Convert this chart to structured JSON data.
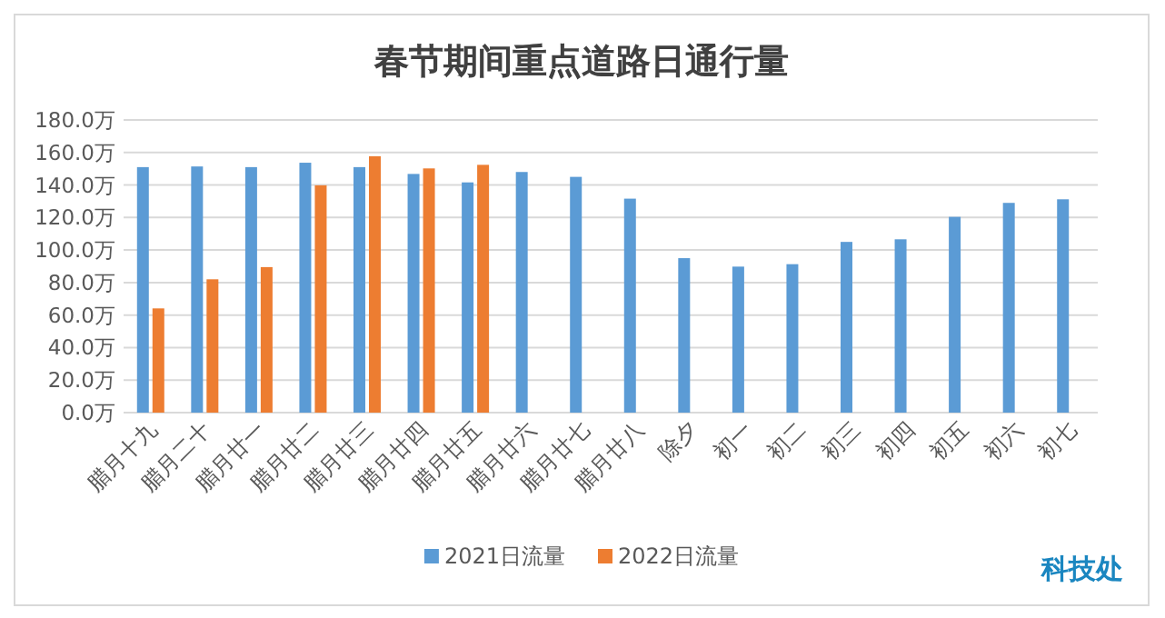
{
  "chart_data": {
    "type": "bar",
    "title": "春节期间重点道路日通行量",
    "categories": [
      "腊月十九",
      "腊月二十",
      "腊月廿一",
      "腊月廿二",
      "腊月廿三",
      "腊月廿四",
      "腊月廿五",
      "腊月廿六",
      "腊月廿七",
      "腊月廿八",
      "除夕",
      "初一",
      "初二",
      "初三",
      "初四",
      "初五",
      "初六",
      "初七"
    ],
    "series": [
      {
        "name": "2021日流量",
        "color": "#5b9bd5",
        "values": [
          151,
          151.4,
          151,
          153.7,
          151,
          146.8,
          141.6,
          148,
          145,
          131.6,
          95,
          89.8,
          91.3,
          105,
          106.6,
          120.4,
          129,
          131.2
        ]
      },
      {
        "name": "2022日流量",
        "color": "#ed7d31",
        "values": [
          64.1,
          82,
          89.5,
          139.8,
          157.7,
          150.2,
          152.4,
          null,
          null,
          null,
          null,
          null,
          null,
          null,
          null,
          null,
          null,
          null
        ]
      }
    ],
    "ylim": [
      0,
      180
    ],
    "yticks": [
      {
        "value": 0,
        "label": "0.0万"
      },
      {
        "value": 20,
        "label": "20.0万"
      },
      {
        "value": 40,
        "label": "40.0万"
      },
      {
        "value": 60,
        "label": "60.0万"
      },
      {
        "value": 80,
        "label": "80.0万"
      },
      {
        "value": 100,
        "label": "100.0万"
      },
      {
        "value": 120,
        "label": "120.0万"
      },
      {
        "value": 140,
        "label": "140.0万"
      },
      {
        "value": 160,
        "label": "160.0万"
      },
      {
        "value": 180,
        "label": "180.0万"
      }
    ],
    "grid": "y",
    "legend": "bottom",
    "annotations": [
      "科技处"
    ]
  }
}
